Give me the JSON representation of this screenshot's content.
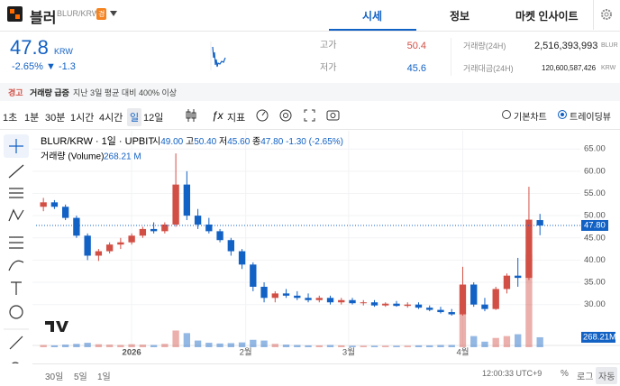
{
  "header": {
    "coin_name": "블러",
    "pair": "BLUR/KRW",
    "badge": "경",
    "tabs": [
      "시세",
      "정보",
      "마켓 인사이트"
    ],
    "active_tab": 0
  },
  "ticker": {
    "price": "47.8",
    "currency": "KRW",
    "change_pct": "-2.65%",
    "change": "▼ -1.3",
    "high_label": "고가",
    "high": "50.4",
    "low_label": "저가",
    "low": "45.6",
    "volume_label": "거래량(24H)",
    "volume": "2,516,393,993",
    "volume_unit": "BLUR",
    "amount_label": "거래대금(24H)",
    "amount": "120,600,587,426",
    "amount_unit": "KRW"
  },
  "warning": {
    "tag": "경고",
    "title": "거래량 급증",
    "text": "지난 3일 평균 대비 400% 이상"
  },
  "toolbar": {
    "intervals": [
      "1초",
      "1분",
      "30분",
      "1시간",
      "4시간",
      "일",
      "12일"
    ],
    "active_interval": 5,
    "indicator": "지표",
    "chart_modes": [
      "기본차트",
      "트레이딩뷰"
    ],
    "active_mode": 1
  },
  "footer": {
    "ranges": [
      "30일",
      "5일",
      "1일"
    ],
    "time": "12:00:33 UTC+9",
    "options": [
      "%",
      "로그",
      "자동"
    ],
    "active_option": 2
  },
  "chart_data": {
    "type": "candlestick",
    "legend": {
      "symbol": "BLUR/KRW · 1일 · UPBIT",
      "open_label": "시",
      "open": "49.00",
      "high_label": "고",
      "high": "50.40",
      "low_label": "저",
      "low": "45.60",
      "close_label": "종",
      "close": "47.80",
      "change": "-1.30 (-2.65%)",
      "volume_title": "거래량 (Volume)",
      "volume": "268.21 M"
    },
    "x": [
      -24,
      -21,
      -18,
      -15,
      -12,
      -9,
      -6,
      -3,
      0,
      3,
      6,
      9,
      12,
      15,
      18,
      21,
      24,
      27,
      30,
      33,
      36,
      39,
      42,
      45,
      48,
      51,
      54,
      57,
      60,
      63,
      66,
      69,
      72,
      75,
      78,
      81,
      84,
      87,
      90,
      93,
      96,
      99,
      102,
      105,
      108,
      111
    ],
    "open": [
      52,
      53,
      52,
      49.5,
      45.5,
      41,
      42,
      43.5,
      44,
      45.5,
      47,
      46.5,
      48,
      57,
      50,
      48,
      46.5,
      44.5,
      42,
      39,
      34,
      31.5,
      32.5,
      32,
      31.5,
      31,
      31.5,
      30.5,
      31,
      30.3,
      30.5,
      29.8,
      30.2,
      29.7,
      30,
      29.3,
      28.8,
      28.3,
      27.8,
      34.5,
      30,
      29,
      33.5,
      36.5,
      36,
      49
    ],
    "high": [
      54,
      53.5,
      52.5,
      50,
      46,
      42.5,
      44,
      45,
      46,
      47.5,
      48.5,
      48.5,
      64,
      60,
      51.5,
      49.5,
      47,
      45,
      42.5,
      39.5,
      35,
      33,
      33.5,
      33,
      32.5,
      32,
      32,
      31.5,
      31.5,
      31,
      31,
      30.5,
      30.8,
      30.5,
      30.5,
      29.8,
      29.5,
      29,
      38.5,
      35,
      31.5,
      34,
      37,
      40.5,
      56.5,
      50.4
    ],
    "low": [
      51,
      51.5,
      49,
      45,
      40,
      39.8,
      41.5,
      42.5,
      43.5,
      45,
      46,
      46,
      47.5,
      49,
      47,
      46,
      44,
      41,
      38,
      33,
      30.5,
      30.5,
      31.5,
      31,
      30.5,
      30.5,
      30,
      30,
      30,
      29.8,
      29.5,
      29.5,
      29.5,
      29.3,
      29,
      28.5,
      28,
      27.5,
      27.5,
      29.5,
      28.5,
      28.8,
      32.5,
      34,
      35.5,
      45.6
    ],
    "close": [
      53,
      52,
      49.5,
      45.5,
      41,
      42,
      43.5,
      44,
      45.5,
      47,
      46.5,
      48,
      57,
      50,
      48,
      46.5,
      44.5,
      42,
      39,
      34,
      31.5,
      32.5,
      32,
      31.5,
      31,
      31.5,
      30.5,
      31,
      30.3,
      30.5,
      29.8,
      30.2,
      29.7,
      30,
      29.3,
      28.8,
      28.3,
      27.8,
      34.5,
      30,
      29,
      33.5,
      36.5,
      36,
      49.1,
      47.8
    ],
    "volume": [
      60,
      50,
      70,
      90,
      120,
      80,
      70,
      60,
      80,
      70,
      60,
      90,
      450,
      380,
      180,
      120,
      100,
      110,
      130,
      200,
      180,
      90,
      70,
      60,
      50,
      50,
      60,
      50,
      40,
      40,
      40,
      40,
      40,
      40,
      50,
      50,
      60,
      60,
      900,
      300,
      150,
      250,
      300,
      350,
      2500,
      268.21
    ],
    "xlim": [
      -26,
      121
    ],
    "xticks": [
      {
        "value": 0,
        "label": "2026"
      },
      {
        "value": 31,
        "label": "2월"
      },
      {
        "value": 59,
        "label": "3월"
      },
      {
        "value": 90,
        "label": "4월"
      }
    ],
    "ylim": [
      20.4,
      69.1
    ],
    "yticks": [
      {
        "value": 30,
        "label": "30.00"
      },
      {
        "value": 35,
        "label": "35.00"
      },
      {
        "value": 40,
        "label": "40.00"
      },
      {
        "value": 45,
        "label": "45.00"
      },
      {
        "value": 50,
        "label": "50.00"
      },
      {
        "value": 55,
        "label": "55.00"
      },
      {
        "value": 60,
        "label": "60.00"
      },
      {
        "value": 65,
        "label": "65.00"
      }
    ],
    "volume_ylim": [
      0,
      2600
    ],
    "last_price": {
      "value": 47.8,
      "label": "47.80"
    },
    "last_volume": {
      "value": 268.21,
      "label": "268.21M"
    },
    "up_color": "#d24f45",
    "down_color": "#1261c4"
  }
}
